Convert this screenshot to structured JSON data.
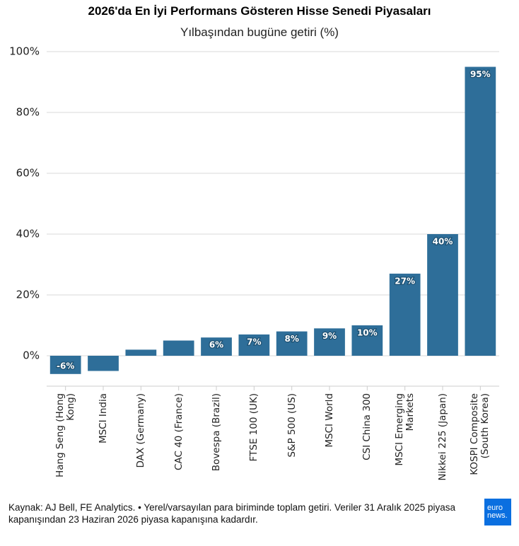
{
  "chart_data": {
    "type": "bar",
    "title": "2026'da En İyi Performans Gösteren Hisse Senedi Piyasaları",
    "subtitle": "Yılbaşından bugüne getiri (%)",
    "categories": [
      "Hang Seng (Hong\nKong)",
      "MSCI India",
      "DAX (Germany)",
      "CAC 40 (France)",
      "Bovespa (Brazil)",
      "FTSE 100 (UK)",
      "S&P 500 (US)",
      "MSCI World",
      "CSI China 300",
      "MSCI Emerging\nMarkets",
      "Nikkei 225 (Japan)",
      "KOSPI Composite\n(South Korea)"
    ],
    "values": [
      -6,
      -5,
      2,
      5,
      6,
      7,
      8,
      9,
      10,
      27,
      40,
      95
    ],
    "value_labels": [
      "-6%",
      null,
      null,
      null,
      "6%",
      "7%",
      "8%",
      "9%",
      "10%",
      "27%",
      "40%",
      "95%"
    ],
    "color": "#2e6e99",
    "ylim": [
      -10,
      100
    ],
    "yticks": [
      {
        "value": 0,
        "label": "0%"
      },
      {
        "value": 20,
        "label": "20%"
      },
      {
        "value": 40,
        "label": "40%"
      },
      {
        "value": 60,
        "label": "60%"
      },
      {
        "value": 80,
        "label": "80%"
      },
      {
        "value": 100,
        "label": "100%"
      }
    ],
    "grid": true,
    "source": "Kaynak: AJ Bell, FE Analytics. • Yerel/varsayılan para biriminde toplam getiri. Veriler 31 Aralık 2025 piyasa kapanışından 23 Haziran 2026 piyasa kapanışına kadardır.",
    "logo": [
      "euro",
      "news."
    ]
  }
}
